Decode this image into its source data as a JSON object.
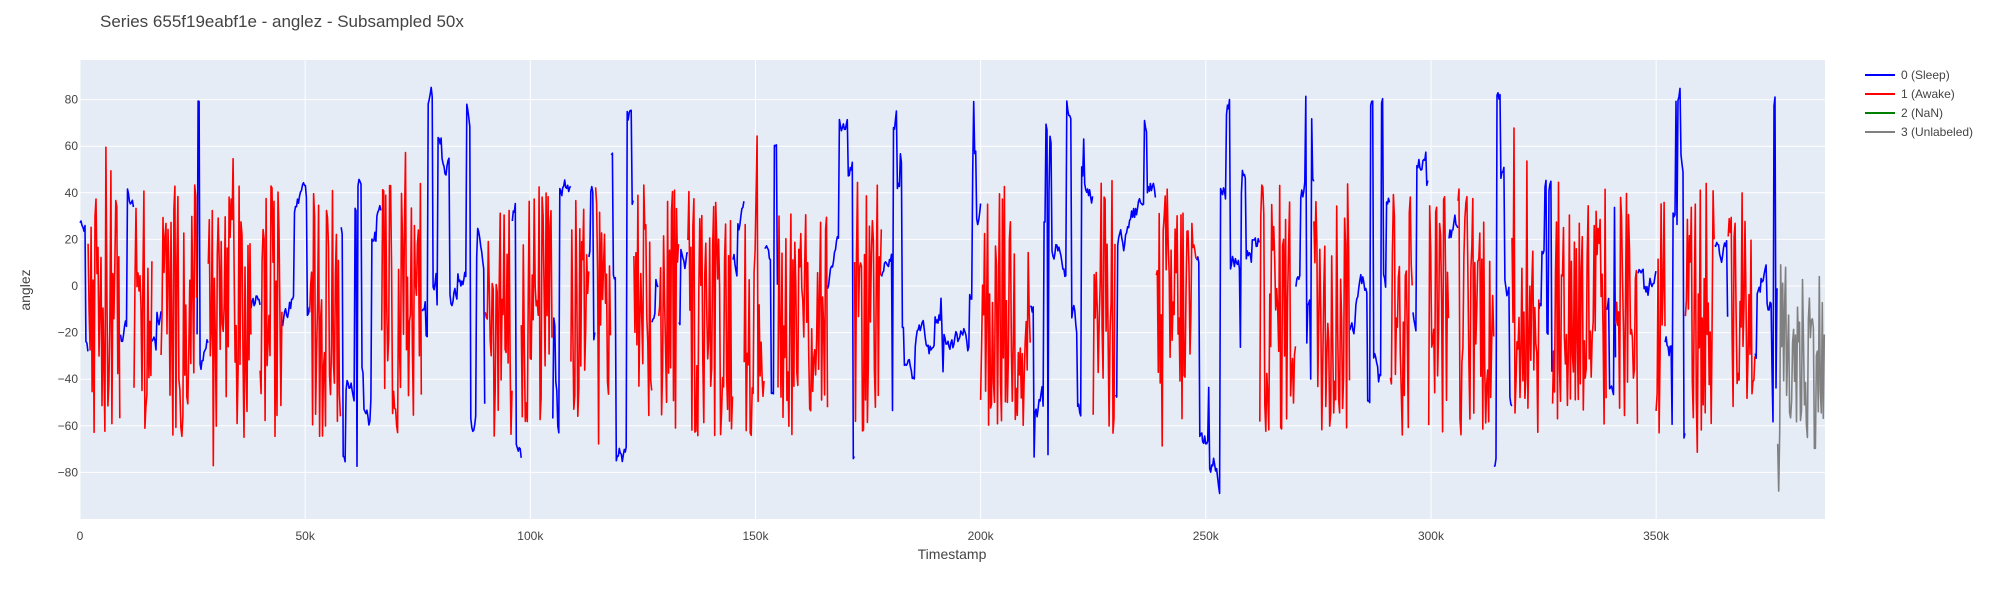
{
  "chart_data": {
    "type": "line",
    "title": "Series 655f19eabf1e - anglez - Subsampled 50x",
    "xlabel": "Timestamp",
    "ylabel": "anglez",
    "xlim": [
      0,
      387500
    ],
    "ylim": [
      -100,
      97
    ],
    "x_ticks": [
      0,
      50000,
      100000,
      150000,
      200000,
      250000,
      300000,
      350000
    ],
    "x_tick_labels": [
      "0",
      "50k",
      "100k",
      "150k",
      "200k",
      "250k",
      "300k",
      "350k"
    ],
    "y_ticks": [
      -80,
      -60,
      -40,
      -20,
      0,
      20,
      40,
      60,
      80
    ],
    "y_tick_labels": [
      "−80",
      "−60",
      "−40",
      "−20",
      "0",
      "20",
      "40",
      "60",
      "80"
    ],
    "grid": true,
    "legend_position": "top-right",
    "series": [
      {
        "name": "0 (Sleep)",
        "color": "#0000ff",
        "segments": [
          [
            0,
            1800
          ],
          [
            9000,
            12000
          ],
          [
            16000,
            18000
          ],
          [
            26000,
            28500
          ],
          [
            38000,
            40000
          ],
          [
            45000,
            51000
          ],
          [
            58000,
            67000
          ],
          [
            76000,
            90000
          ],
          [
            96000,
            98000
          ],
          [
            105000,
            109000
          ],
          [
            113000,
            114500
          ],
          [
            118000,
            123000
          ],
          [
            127000,
            128500
          ],
          [
            133000,
            135000
          ],
          [
            145000,
            147500
          ],
          [
            152000,
            155000
          ],
          [
            166000,
            172000
          ],
          [
            178000,
            200000
          ],
          [
            211000,
            225000
          ],
          [
            230000,
            239000
          ],
          [
            248000,
            262000
          ],
          [
            270000,
            274000
          ],
          [
            282000,
            291000
          ],
          [
            296000,
            299500
          ],
          [
            304000,
            306000
          ],
          [
            314000,
            318000
          ],
          [
            324000,
            327000
          ],
          [
            339000,
            341000
          ],
          [
            346000,
            350000
          ],
          [
            352000,
            356500
          ],
          [
            363000,
            366000
          ],
          [
            372000,
            377000
          ]
        ]
      },
      {
        "name": "1 (Awake)",
        "color": "#ff0000",
        "segments": [
          [
            1800,
            9000
          ],
          [
            12000,
            16000
          ],
          [
            18000,
            26000
          ],
          [
            28500,
            38000
          ],
          [
            40000,
            45000
          ],
          [
            51000,
            58000
          ],
          [
            67000,
            76000
          ],
          [
            90000,
            96000
          ],
          [
            98000,
            105000
          ],
          [
            109000,
            113000
          ],
          [
            114500,
            118000
          ],
          [
            123000,
            127000
          ],
          [
            128500,
            133000
          ],
          [
            135000,
            145000
          ],
          [
            147500,
            152000
          ],
          [
            155000,
            166000
          ],
          [
            172000,
            178000
          ],
          [
            200000,
            211000
          ],
          [
            225000,
            230000
          ],
          [
            239000,
            248000
          ],
          [
            262000,
            270000
          ],
          [
            274000,
            282000
          ],
          [
            291000,
            296000
          ],
          [
            299500,
            304000
          ],
          [
            306000,
            314000
          ],
          [
            318000,
            324000
          ],
          [
            327000,
            339000
          ],
          [
            341000,
            346000
          ],
          [
            350000,
            352000
          ],
          [
            356500,
            363000
          ],
          [
            366000,
            372000
          ]
        ]
      },
      {
        "name": "2 (NaN)",
        "color": "#008000",
        "segments": []
      },
      {
        "name": "3 (Unlabeled)",
        "color": "#808080",
        "segments": [
          [
            377000,
            387500
          ]
        ]
      }
    ]
  }
}
